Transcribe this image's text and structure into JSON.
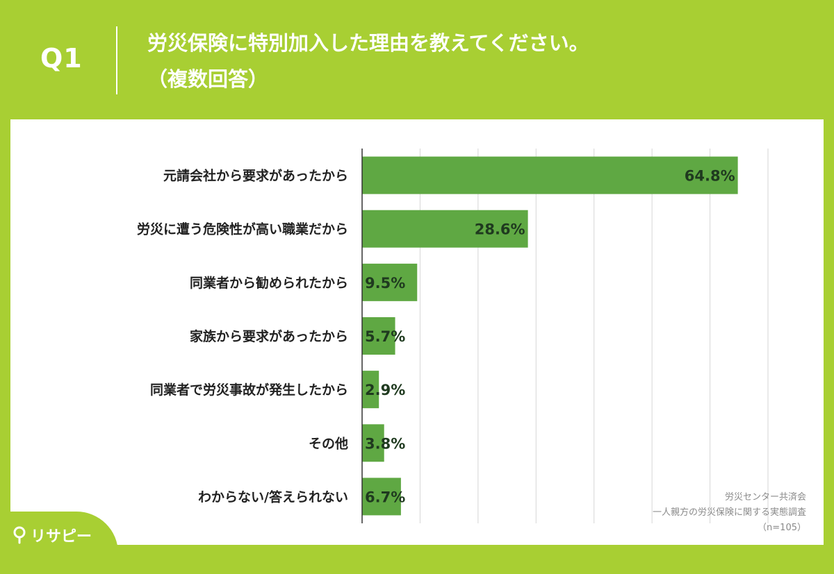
{
  "header": {
    "question": "Q1",
    "title": "労災保険に特別加入した理由を教えてください。",
    "subtitle": "（複数回答）"
  },
  "chart_data": {
    "type": "bar",
    "orientation": "horizontal",
    "categories": [
      "元請会社から要求があったから",
      "労災に遭う危険性が高い職業だから",
      "同業者から勧められたから",
      "家族から要求があったから",
      "同業者で労災事故が発生したから",
      "その他",
      "わからない/答えられない"
    ],
    "values": [
      64.8,
      28.6,
      9.5,
      5.7,
      2.9,
      3.8,
      6.7
    ],
    "value_labels": [
      "64.8%",
      "28.6%",
      "9.5%",
      "5.7%",
      "2.9%",
      "3.8%",
      "6.7%"
    ],
    "xlim": [
      0,
      70
    ],
    "grid": true,
    "bar_color": "#5fa843"
  },
  "source": {
    "line1": "労災センター共済会",
    "line2": "一人親方の労災保険に関する実態調査",
    "line3": "（n=105）"
  },
  "brand": {
    "name": "リサピー"
  }
}
